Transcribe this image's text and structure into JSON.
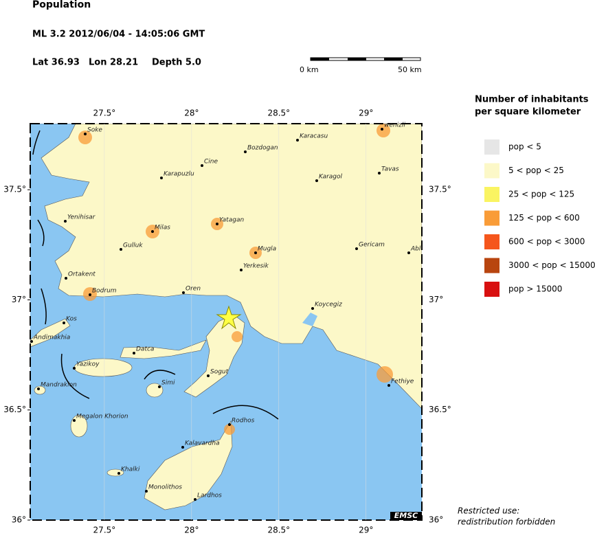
{
  "header": {
    "title": "Population",
    "event": "ML 3.2  2012/06/04 - 14:05:06 GMT",
    "lat": "Lat 36.93",
    "lon": "Lon  28.21",
    "depth": "Depth  5.0"
  },
  "scale_bar": {
    "start": "0 km",
    "end": "50 km"
  },
  "map": {
    "lon_range": [
      27.075,
      29.32
    ],
    "lat_range": [
      36.0,
      37.8
    ],
    "lon_ticks": [
      {
        "value": 27.5,
        "label": "27.5°"
      },
      {
        "value": 28,
        "label": "28°"
      },
      {
        "value": 28.5,
        "label": "28.5°"
      },
      {
        "value": 29,
        "label": "29°"
      }
    ],
    "lat_ticks": [
      {
        "value": 37.5,
        "label": "37.5°"
      },
      {
        "value": 37,
        "label": "37°"
      },
      {
        "value": 36.5,
        "label": "36.5°"
      },
      {
        "value": 36,
        "label": "36°"
      }
    ],
    "cities": [
      "Soke",
      "wenizli",
      "Karacasu",
      "Bozdogan",
      "Cine",
      "Karapuzlu",
      "Karagol",
      "Tavas",
      "Yenihisar",
      "Yatagan",
      "Milas",
      "Gulluk",
      "Mugla",
      "Gericam",
      "Abl",
      "Yerkesik",
      "Ortakent",
      "Bodrum",
      "Oren",
      "Koycegiz",
      "Kos",
      "Andimakhia",
      "Datca",
      "Yazikoy",
      "Sogut",
      "Simi",
      "Mandrakion",
      "Fethiye",
      "Megalon Khorion",
      "Rodhos",
      "Kalavardha",
      "Khalki",
      "Monolithos",
      "Lardhos"
    ],
    "badge": "EMSC"
  },
  "legend": {
    "title": [
      "Number of inhabitants",
      "per square kilometer"
    ],
    "items": [
      {
        "label": "pop < 5",
        "color": "#e6e6e6"
      },
      {
        "label": "5 < pop < 25",
        "color": "#fcf8c8"
      },
      {
        "label": "25 < pop < 125",
        "color": "#faf462"
      },
      {
        "label": "125 < pop < 600",
        "color": "#f99c38"
      },
      {
        "label": "600 < pop < 3000",
        "color": "#f5561c"
      },
      {
        "label": "3000 < pop < 15000",
        "color": "#b8450f"
      },
      {
        "label": "pop > 15000",
        "color": "#d81010"
      }
    ]
  },
  "note": [
    "Restricted use:",
    "redistribution forbidden"
  ]
}
